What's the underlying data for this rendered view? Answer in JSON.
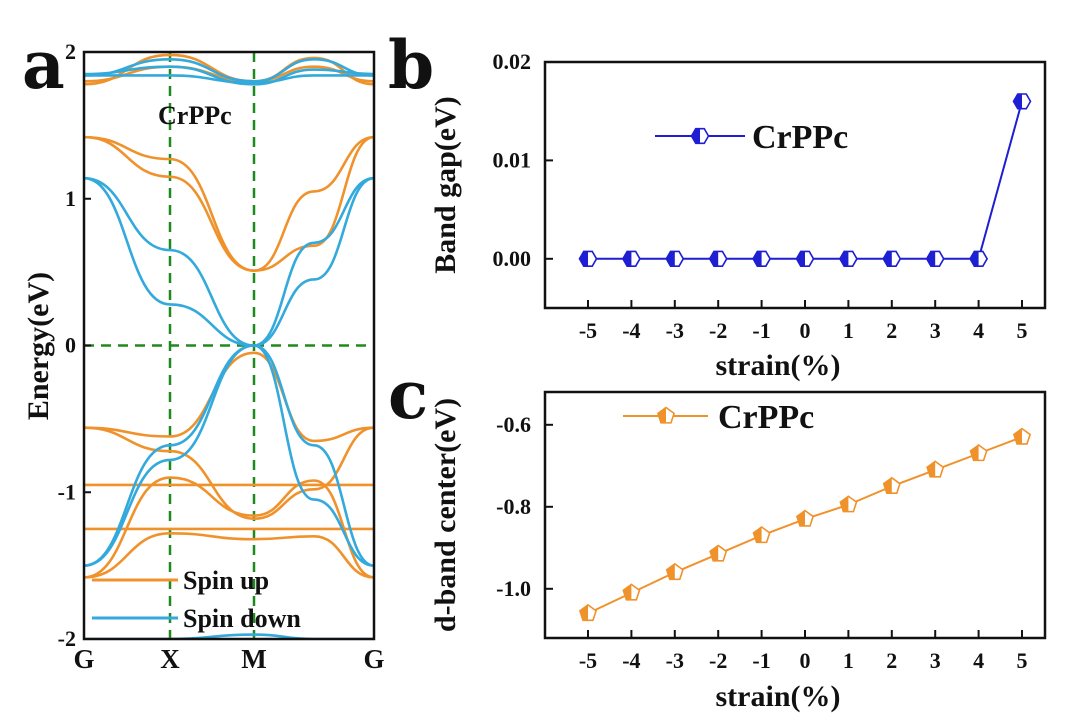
{
  "chart_data": [
    {
      "panel": "a",
      "type": "line",
      "title": "CrPPc",
      "ylabel": "Energy(eV)",
      "xlabel": "",
      "x_ticks": [
        "G",
        "X",
        "M",
        "G"
      ],
      "ylim": [
        -2,
        2
      ],
      "y_ticks": [
        "-2",
        "-1",
        "0",
        "1",
        "2"
      ],
      "reference_lines": {
        "x": [
          "X",
          "M"
        ],
        "y": 0
      },
      "legend": [
        "Spin up",
        "Spin down"
      ],
      "colors": {
        "spin_up": "#F0922C",
        "spin_down": "#33A9DC",
        "guide": "#1E8A1E"
      },
      "series": [
        {
          "name": "Spin up",
          "bands": [
            [
              1.42,
              1.27,
              0.51,
              1.05,
              1.42
            ],
            [
              1.42,
              1.15,
              0.51,
              0.68,
              1.42
            ],
            [
              -0.56,
              -0.62,
              -0.05,
              -0.65,
              -0.56
            ],
            [
              -0.56,
              -0.72,
              -1.18,
              -0.98,
              -0.56
            ],
            [
              -0.95,
              -0.95,
              -0.95,
              -0.95,
              -0.95
            ],
            [
              -1.25,
              -1.25,
              -1.25,
              -1.25,
              -1.25
            ],
            [
              -1.58,
              -1.28,
              -1.32,
              -1.3,
              -1.58
            ],
            [
              -1.58,
              -0.9,
              -1.16,
              -0.92,
              -1.58
            ],
            [
              1.78,
              1.98,
              1.8,
              1.96,
              1.78
            ],
            [
              1.8,
              1.9,
              1.8,
              1.9,
              1.8
            ]
          ]
        },
        {
          "name": "Spin down",
          "bands": [
            [
              1.14,
              0.65,
              0.0,
              0.7,
              1.14
            ],
            [
              1.14,
              0.28,
              0.0,
              0.45,
              1.14
            ],
            [
              -1.5,
              -0.78,
              0.0,
              -0.68,
              -1.5
            ],
            [
              -1.5,
              -0.68,
              0.0,
              -1.05,
              -1.5
            ],
            [
              1.84,
              1.84,
              1.79,
              1.84,
              1.84
            ],
            [
              1.84,
              1.95,
              1.8,
              1.95,
              1.84
            ],
            [
              1.85,
              1.9,
              1.78,
              1.88,
              1.85
            ],
            [
              -2.0,
              -2.0,
              -1.97,
              -2.0,
              -2.0
            ]
          ]
        }
      ]
    },
    {
      "panel": "b",
      "type": "line",
      "title": "",
      "xlabel": "strain(%)",
      "ylabel": "Band gap(eV)",
      "x": [
        -5,
        -4,
        -3,
        -2,
        -1,
        0,
        1,
        2,
        3,
        4,
        5
      ],
      "x_ticks": [
        "-5",
        "-4",
        "-3",
        "-2",
        "-1",
        "0",
        "1",
        "2",
        "3",
        "4",
        "5"
      ],
      "ylim": [
        -0.005,
        0.02
      ],
      "y_ticks": [
        "0.00",
        "0.01",
        "0.02"
      ],
      "series": [
        {
          "name": "CrPPc",
          "color": "#1E1ED2",
          "marker": "half-filled hexagon",
          "values": [
            0,
            0,
            0,
            0,
            0,
            0,
            0,
            0,
            0,
            0,
            0.016
          ]
        }
      ]
    },
    {
      "panel": "c",
      "type": "line",
      "title": "",
      "xlabel": "strain(%)",
      "ylabel": "d-band center(eV)",
      "x": [
        -5,
        -4,
        -3,
        -2,
        -1,
        0,
        1,
        2,
        3,
        4,
        5
      ],
      "x_ticks": [
        "-5",
        "-4",
        "-3",
        "-2",
        "-1",
        "0",
        "1",
        "2",
        "3",
        "4",
        "5"
      ],
      "ylim": [
        -1.12,
        -0.52
      ],
      "y_ticks": [
        "-1.0",
        "-0.8",
        "-0.6"
      ],
      "series": [
        {
          "name": "CrPPc",
          "color": "#F0922C",
          "marker": "half-filled pentagon",
          "values": [
            -1.06,
            -1.01,
            -0.96,
            -0.915,
            -0.87,
            -0.83,
            -0.795,
            -0.75,
            -0.71,
            -0.67,
            -0.63
          ]
        }
      ]
    }
  ]
}
